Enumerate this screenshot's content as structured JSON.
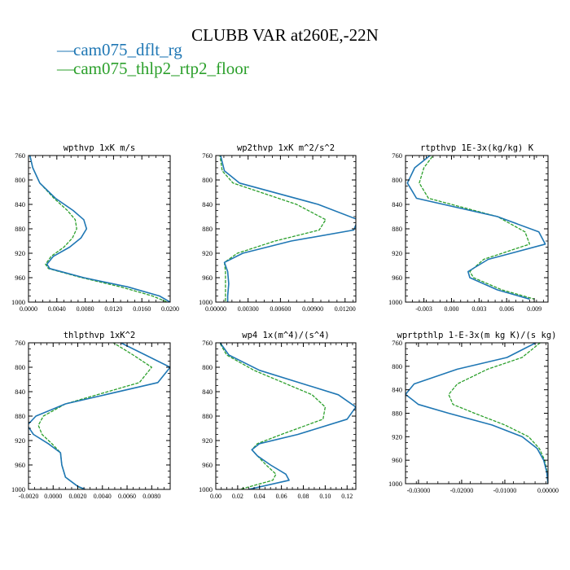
{
  "title": "CLUBB VAR at260E,-22N",
  "legend": [
    {
      "label": "cam075_dflt_rg",
      "color": "#1f77b4",
      "dash": "—"
    },
    {
      "label": "cam075_thlp2_rtp2_floor",
      "color": "#2ca02c",
      "dash": "—"
    }
  ],
  "colors": {
    "series1": "#1f77b4",
    "series2": "#2ca02c"
  },
  "chart_data": [
    {
      "type": "line",
      "title": "wpthvp  1xK m/s",
      "xlim": [
        0,
        0.02
      ],
      "xticks": [
        "0.0000",
        "0.0040",
        "0.0080",
        "0.0120",
        "0.0160",
        "0.0200"
      ],
      "xtick_values": [
        0,
        0.004,
        0.008,
        0.012,
        0.016,
        0.02
      ],
      "ylim": [
        760,
        1000
      ],
      "yticks": [
        "760",
        "800",
        "840",
        "880",
        "920",
        "960",
        "1000"
      ],
      "ytick_values": [
        760,
        800,
        840,
        880,
        920,
        960,
        1000
      ],
      "y": [
        750,
        780,
        805,
        830,
        850,
        865,
        880,
        895,
        910,
        925,
        938,
        945,
        960,
        975,
        990,
        1000
      ],
      "series": [
        {
          "name": "cam075_dflt_rg",
          "values": [
            0.0,
            0.0006,
            0.0016,
            0.0038,
            0.0063,
            0.0078,
            0.0082,
            0.0074,
            0.0058,
            0.0035,
            0.0026,
            0.003,
            0.0078,
            0.014,
            0.0185,
            0.02
          ]
        },
        {
          "name": "cam075_thlp2_rtp2_floor",
          "values": [
            0.0,
            0.0006,
            0.0016,
            0.0036,
            0.0055,
            0.0066,
            0.0068,
            0.0062,
            0.005,
            0.0032,
            0.0024,
            0.0028,
            0.0075,
            0.013,
            0.0175,
            0.0196
          ]
        }
      ]
    },
    {
      "type": "line",
      "title": "wp2thvp  1xK m^2/s^2",
      "xlim": [
        0,
        0.013
      ],
      "xticks": [
        "0.00000",
        "0.00300",
        "0.00600",
        "0.00900",
        "0.01200"
      ],
      "xtick_values": [
        0,
        0.003,
        0.006,
        0.009,
        0.012
      ],
      "ylim": [
        760,
        1000
      ],
      "yticks": [
        "760",
        "800",
        "840",
        "880",
        "920",
        "960",
        "1000"
      ],
      "ytick_values": [
        760,
        800,
        840,
        880,
        920,
        960,
        1000
      ],
      "y": [
        750,
        785,
        805,
        840,
        865,
        882,
        900,
        920,
        935,
        950,
        970,
        990,
        1000
      ],
      "series": [
        {
          "name": "cam075_dflt_rg",
          "values": [
            0.0003,
            0.0008,
            0.0022,
            0.0095,
            0.0132,
            0.0128,
            0.007,
            0.0025,
            0.0008,
            0.0011,
            0.0012,
            0.0011,
            0.0011
          ]
        },
        {
          "name": "cam075_thlp2_rtp2_floor",
          "values": [
            0.0003,
            0.0006,
            0.0016,
            0.0075,
            0.0102,
            0.0096,
            0.0055,
            0.002,
            0.0008,
            0.0009,
            0.0009,
            0.0009,
            0.0009
          ]
        }
      ]
    },
    {
      "type": "line",
      "title": "rtpthvp  1E-3x(kg/kg) K",
      "xlim": [
        -0.005,
        0.0105
      ],
      "xticks": [
        "-0.003",
        "0.000",
        "0.003",
        "0.006",
        "0.009"
      ],
      "xtick_values": [
        -0.003,
        0,
        0.003,
        0.006,
        0.009
      ],
      "ylim": [
        760,
        1000
      ],
      "yticks": [
        "760",
        "800",
        "840",
        "880",
        "920",
        "960",
        "1000"
      ],
      "ytick_values": [
        760,
        800,
        840,
        880,
        920,
        960,
        1000
      ],
      "y": [
        750,
        780,
        805,
        830,
        860,
        885,
        905,
        930,
        950,
        960,
        980,
        995
      ],
      "series": [
        {
          "name": "cam075_dflt_rg",
          "values": [
            -0.0015,
            -0.004,
            -0.0048,
            -0.0038,
            0.005,
            0.0095,
            0.0102,
            0.004,
            0.0018,
            0.002,
            0.005,
            0.0085
          ]
        },
        {
          "name": "cam075_thlp2_rtp2_floor",
          "values": [
            -0.0015,
            -0.003,
            -0.0035,
            -0.0025,
            0.005,
            0.008,
            0.0085,
            0.0035,
            0.002,
            0.0024,
            0.0055,
            0.009
          ]
        }
      ]
    },
    {
      "type": "line",
      "title": "thlpthvp  1xK^2",
      "xlim": [
        -0.002,
        0.0095
      ],
      "xticks": [
        "-0.0020",
        "0.0000",
        "0.0020",
        "0.0040",
        "0.0060",
        "0.0080"
      ],
      "xtick_values": [
        -0.002,
        0,
        0.002,
        0.004,
        0.006,
        0.008
      ],
      "ylim": [
        760,
        1000
      ],
      "yticks": [
        "760",
        "800",
        "840",
        "880",
        "920",
        "960",
        "1000"
      ],
      "ytick_values": [
        760,
        800,
        840,
        880,
        920,
        960,
        1000
      ],
      "y": [
        755,
        780,
        800,
        825,
        860,
        880,
        895,
        910,
        925,
        940,
        960,
        980,
        995,
        1000
      ],
      "series": [
        {
          "name": "cam075_dflt_rg",
          "values": [
            0.005,
            0.0075,
            0.0095,
            0.0085,
            0.001,
            -0.0014,
            -0.0021,
            -0.0016,
            -0.0004,
            0.0006,
            0.0007,
            0.001,
            0.002,
            0.0026
          ]
        },
        {
          "name": "cam075_thlp2_rtp2_floor",
          "values": [
            0.0045,
            0.0065,
            0.008,
            0.007,
            0.001,
            -0.0008,
            -0.0012,
            -0.0009,
            -0.0001,
            0.0006,
            0.0007,
            0.001,
            0.002,
            0.0024
          ]
        }
      ]
    },
    {
      "type": "line",
      "title": "wp4  1x(m^4)/(s^4)",
      "xlim": [
        0,
        0.128
      ],
      "xticks": [
        "0.00",
        "0.02",
        "0.04",
        "0.06",
        "0.08",
        "0.10",
        "0.12"
      ],
      "xtick_values": [
        0,
        0.02,
        0.04,
        0.06,
        0.08,
        0.1,
        0.12
      ],
      "ylim": [
        760,
        1000
      ],
      "yticks": [
        "760",
        "800",
        "840",
        "880",
        "920",
        "960",
        "1000"
      ],
      "ytick_values": [
        760,
        800,
        840,
        880,
        920,
        960,
        1000
      ],
      "y": [
        755,
        780,
        805,
        845,
        865,
        885,
        910,
        925,
        935,
        945,
        960,
        975,
        985,
        1000
      ],
      "series": [
        {
          "name": "cam075_dflt_rg",
          "values": [
            0.002,
            0.012,
            0.04,
            0.112,
            0.128,
            0.12,
            0.075,
            0.04,
            0.033,
            0.038,
            0.05,
            0.064,
            0.067,
            0.03
          ]
        },
        {
          "name": "cam075_thlp2_rtp2_floor",
          "values": [
            0.002,
            0.01,
            0.035,
            0.088,
            0.1,
            0.098,
            0.06,
            0.038,
            0.033,
            0.038,
            0.046,
            0.055,
            0.052,
            0.022
          ]
        }
      ]
    },
    {
      "type": "line",
      "title": "wprtpthlp  1-E-3x(m kg K)/(s kg)",
      "xlim": [
        -0.033,
        0
      ],
      "xticks": [
        "-0.03000",
        "-0.02000",
        "-0.01000",
        "0.00000"
      ],
      "xtick_values": [
        -0.03,
        -0.02,
        -0.01,
        0
      ],
      "ylim": [
        760,
        1000
      ],
      "yticks": [
        "760",
        "800",
        "840",
        "880",
        "920",
        "960",
        "1000"
      ],
      "ytick_values": [
        760,
        800,
        840,
        880,
        920,
        960,
        1000
      ],
      "y": [
        755,
        785,
        805,
        830,
        848,
        865,
        880,
        900,
        920,
        940,
        960,
        980,
        1000
      ],
      "series": [
        {
          "name": "cam075_dflt_rg",
          "values": [
            -0.0015,
            -0.0095,
            -0.021,
            -0.031,
            -0.033,
            -0.03,
            -0.023,
            -0.013,
            -0.006,
            -0.0025,
            -0.001,
            -0.0003,
            0.0
          ]
        },
        {
          "name": "cam075_thlp2_rtp2_floor",
          "values": [
            -0.001,
            -0.006,
            -0.014,
            -0.021,
            -0.023,
            -0.022,
            -0.017,
            -0.01,
            -0.0045,
            -0.002,
            -0.0008,
            -0.0002,
            0.0
          ]
        }
      ]
    }
  ]
}
